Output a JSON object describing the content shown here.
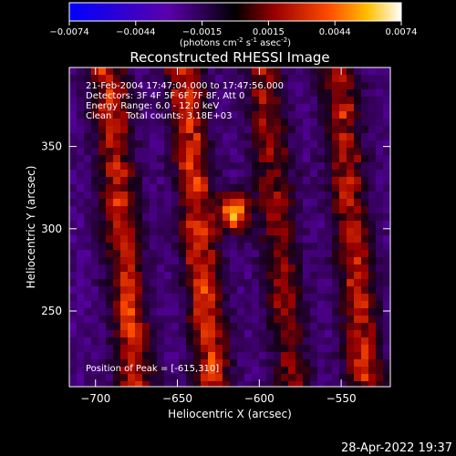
{
  "colorbar": {
    "ticks": [
      "-0.0074",
      "-0.0044",
      "-0.0015",
      "0.0015",
      "0.0044",
      "0.0074"
    ],
    "unit_text": "(photons cm",
    "unit_sup1": "-2",
    "unit_mid1": " s",
    "unit_sup2": "-1",
    "unit_mid2": " asec",
    "unit_sup3": "-2",
    "unit_end": ")",
    "range": [
      -0.0074,
      0.0074
    ]
  },
  "chart_data": {
    "type": "heatmap",
    "title": "Reconstructed RHESSI Image",
    "xlabel": "Heliocentric X (arcsec)",
    "ylabel": "Heliocentric Y (arcsec)",
    "xlim": [
      -716,
      -520
    ],
    "ylim": [
      204,
      398
    ],
    "xticks": [
      -700,
      -650,
      -600,
      -550
    ],
    "xtick_labels": [
      "−700",
      "−650",
      "−600",
      "−550"
    ],
    "yticks": [
      250,
      300,
      350
    ],
    "ytick_labels": [
      "250",
      "300",
      "350"
    ],
    "peak": {
      "x": -615,
      "y": 310
    },
    "ridges": [
      {
        "x0": -700,
        "x1": -668,
        "y0": 204,
        "y1": 398,
        "intensity": 0.7
      },
      {
        "x0": -652,
        "x1": -622,
        "y0": 204,
        "y1": 398,
        "intensity": 0.75
      },
      {
        "x0": -602,
        "x1": -575,
        "y0": 204,
        "y1": 398,
        "intensity": 0.55
      },
      {
        "x0": -560,
        "x1": -527,
        "y0": 204,
        "y1": 398,
        "intensity": 0.65
      }
    ],
    "annotations": [
      "21-Feb-2004 17:47:04.000 to 17:47:56.000",
      "Detectors: 3F 4F 5F 6F 7F 8F, Att 0",
      "Energy Range: 6.0 - 12.0 keV",
      "Clean     Total counts: 3.18E+03"
    ],
    "peak_label": "Position of Peak = [-615,310]",
    "grid": false
  },
  "timestamp": "28-Apr-2022 19:37",
  "colors": {
    "background": "#000000",
    "text": "#ffffff"
  }
}
